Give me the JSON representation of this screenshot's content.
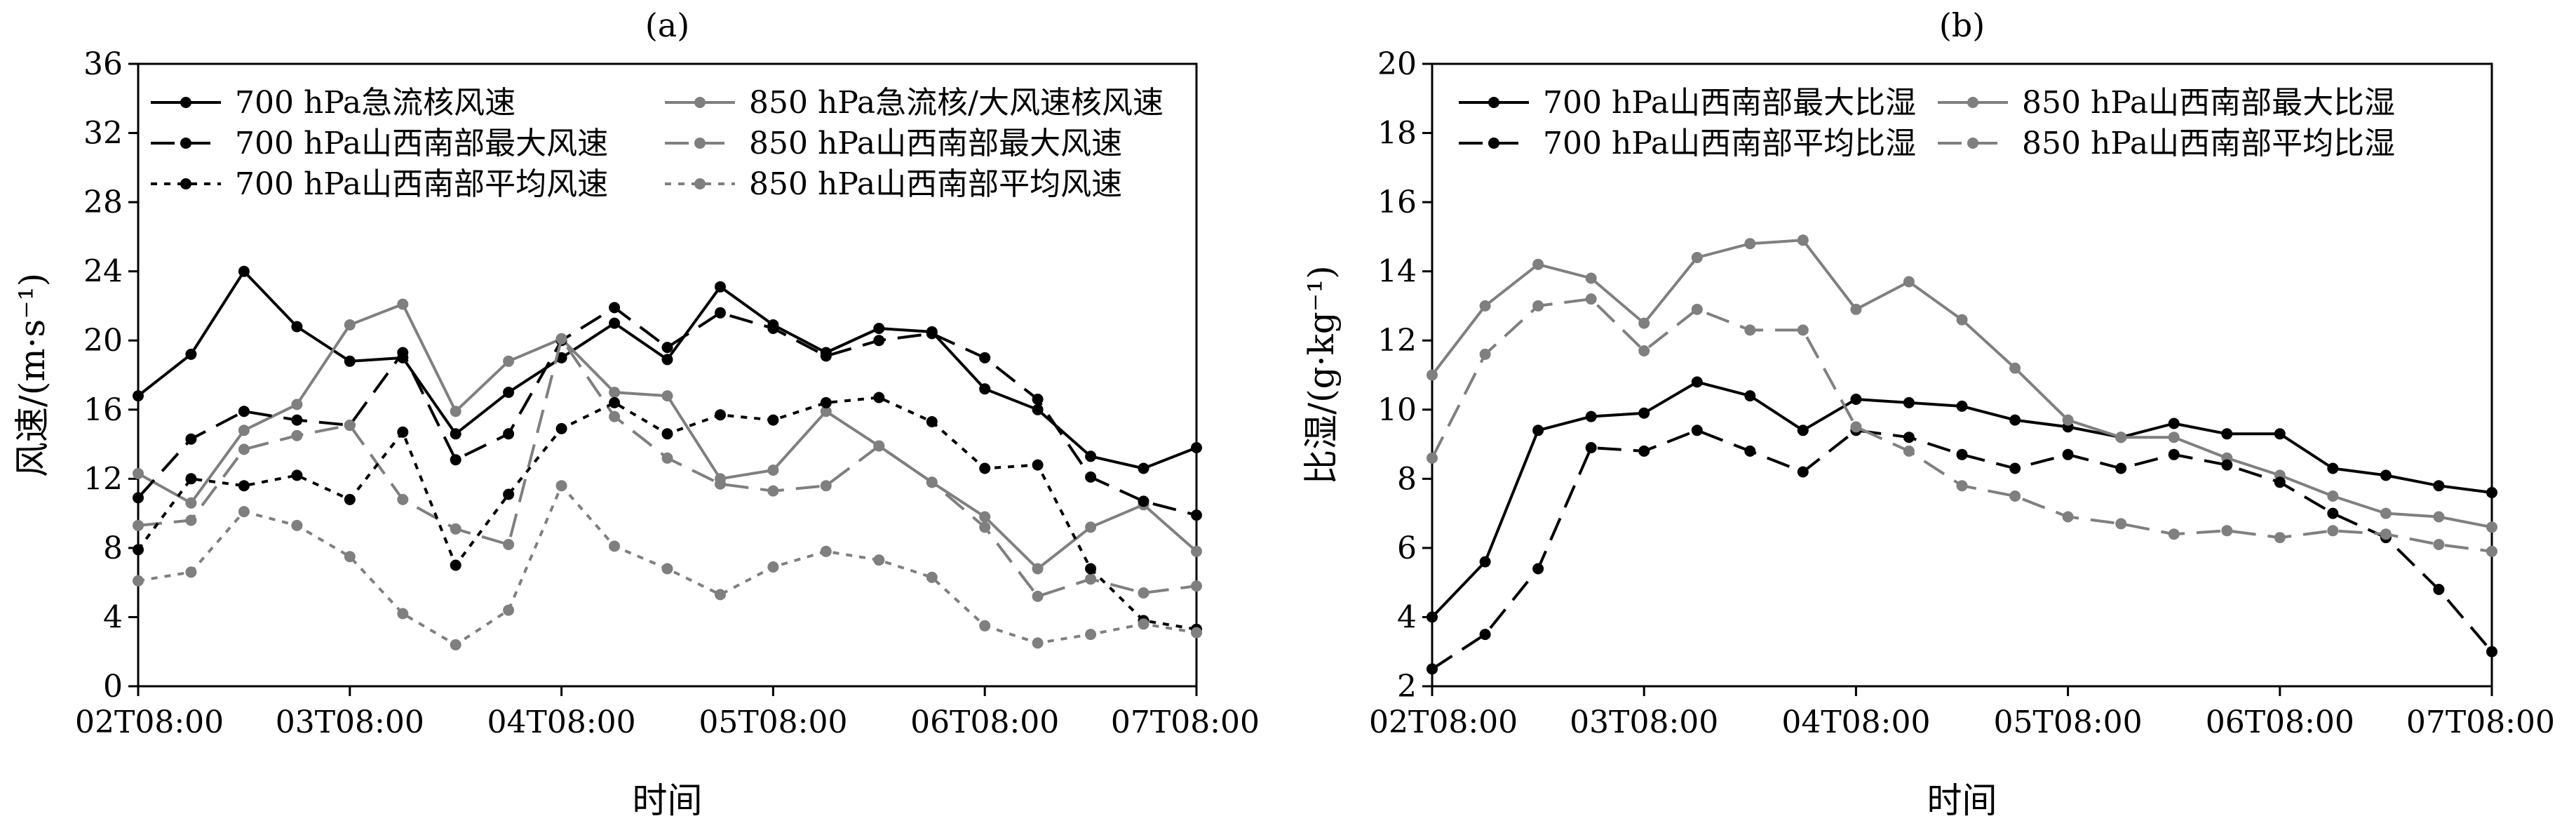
{
  "chart_data": [
    {
      "type": "line",
      "panel_label": "(a)",
      "xlabel": "时间",
      "ylabel": "风速/(m·s⁻¹)",
      "ylim": [
        0,
        36
      ],
      "yticks": [
        0,
        4,
        8,
        12,
        16,
        20,
        24,
        28,
        32,
        36
      ],
      "xlim": [
        0,
        30
      ],
      "xtick_positions": [
        0,
        6,
        12,
        18,
        24,
        30
      ],
      "xtick_labels": [
        "02T08:00",
        "03T08:00",
        "04T08:00",
        "05T08:00",
        "06T08:00",
        "07T08:00"
      ],
      "x": [
        0,
        1.5,
        3,
        4.5,
        6,
        7.5,
        9,
        10.5,
        12,
        13.5,
        15,
        16.5,
        18,
        19.5,
        21,
        22.5,
        24,
        25.5,
        27,
        28.5,
        30
      ],
      "grid": false,
      "legend_position": "top, two columns",
      "series": [
        {
          "name": "700 hPa急流核风速",
          "color": "#000000",
          "style": "solid",
          "values": [
            16.8,
            19.2,
            24.0,
            20.8,
            18.8,
            19.0,
            14.6,
            17.0,
            19.0,
            21.0,
            18.9,
            23.1,
            20.9,
            19.3,
            20.7,
            20.5,
            17.2,
            16.0,
            13.3,
            12.6,
            13.8
          ]
        },
        {
          "name": "850 hPa急流核/大风速核风速",
          "color": "#7f7f7f",
          "style": "solid",
          "values": [
            12.3,
            10.6,
            14.8,
            16.3,
            20.9,
            22.1,
            15.9,
            18.8,
            20.1,
            17.0,
            16.8,
            12.0,
            12.5,
            15.9,
            13.9,
            11.8,
            9.8,
            6.8,
            9.2,
            10.5,
            7.8
          ]
        },
        {
          "name": "700 hPa山西南部最大风速",
          "color": "#000000",
          "style": "dashed",
          "values": [
            10.9,
            14.3,
            15.9,
            15.4,
            15.1,
            19.3,
            13.1,
            14.6,
            20.0,
            21.9,
            19.6,
            21.6,
            20.7,
            19.1,
            20.0,
            20.4,
            19.0,
            16.6,
            12.1,
            10.7,
            9.9
          ]
        },
        {
          "name": "850 hPa山西南部最大风速",
          "color": "#7f7f7f",
          "style": "dashed",
          "values": [
            9.3,
            9.6,
            13.7,
            14.5,
            15.1,
            10.8,
            9.1,
            8.2,
            20.1,
            15.6,
            13.2,
            11.7,
            11.3,
            11.6,
            13.9,
            11.8,
            9.2,
            5.2,
            6.2,
            5.4,
            5.8
          ]
        },
        {
          "name": "700 hPa山西南部平均风速",
          "color": "#000000",
          "style": "dotted",
          "values": [
            7.9,
            12.0,
            11.6,
            12.2,
            10.8,
            14.7,
            7.0,
            11.1,
            14.9,
            16.4,
            14.6,
            15.7,
            15.4,
            16.4,
            16.7,
            15.3,
            12.6,
            12.8,
            6.8,
            3.8,
            3.3
          ]
        },
        {
          "name": "850 hPa山西南部平均风速",
          "color": "#7f7f7f",
          "style": "dotted",
          "values": [
            6.1,
            6.6,
            10.1,
            9.3,
            7.5,
            4.2,
            2.4,
            4.4,
            11.6,
            8.1,
            6.8,
            5.3,
            6.9,
            7.8,
            7.3,
            6.3,
            3.5,
            2.5,
            3.0,
            3.6,
            3.1
          ]
        }
      ]
    },
    {
      "type": "line",
      "panel_label": "(b)",
      "xlabel": "时间",
      "ylabel": "比湿/(g·kg⁻¹)",
      "ylim": [
        2,
        20
      ],
      "yticks": [
        2,
        4,
        6,
        8,
        10,
        12,
        14,
        16,
        18,
        20
      ],
      "xlim": [
        0,
        30
      ],
      "xtick_positions": [
        0,
        6,
        12,
        18,
        24,
        30
      ],
      "xtick_labels": [
        "02T08:00",
        "03T08:00",
        "04T08:00",
        "05T08:00",
        "06T08:00",
        "07T08:00"
      ],
      "x": [
        0,
        1.5,
        3,
        4.5,
        6,
        7.5,
        9,
        10.5,
        12,
        13.5,
        15,
        16.5,
        18,
        19.5,
        21,
        22.5,
        24,
        25.5,
        27,
        28.5,
        30
      ],
      "grid": false,
      "legend_position": "top, two columns",
      "series": [
        {
          "name": "700 hPa山西南部最大比湿",
          "color": "#000000",
          "style": "solid",
          "values": [
            4.0,
            5.6,
            9.4,
            9.8,
            9.9,
            10.8,
            10.4,
            9.4,
            10.3,
            10.2,
            10.1,
            9.7,
            9.5,
            9.2,
            9.6,
            9.3,
            9.3,
            8.3,
            8.1,
            7.8,
            7.6
          ]
        },
        {
          "name": "850 hPa山西南部最大比湿",
          "color": "#7f7f7f",
          "style": "solid",
          "values": [
            11.0,
            13.0,
            14.2,
            13.8,
            12.5,
            14.4,
            14.8,
            14.9,
            12.9,
            13.7,
            12.6,
            11.2,
            9.7,
            9.2,
            9.2,
            8.6,
            8.1,
            7.5,
            7.0,
            6.9,
            6.6
          ]
        },
        {
          "name": "700 hPa山西南部平均比湿",
          "color": "#000000",
          "style": "dashed",
          "values": [
            2.5,
            3.5,
            5.4,
            8.9,
            8.8,
            9.4,
            8.8,
            8.2,
            9.4,
            9.2,
            8.7,
            8.3,
            8.7,
            8.3,
            8.7,
            8.4,
            7.9,
            7.0,
            6.3,
            4.8,
            3.0
          ]
        },
        {
          "name": "850 hPa山西南部平均比湿",
          "color": "#7f7f7f",
          "style": "dashed",
          "values": [
            8.6,
            11.6,
            13.0,
            13.2,
            11.7,
            12.9,
            12.3,
            12.3,
            9.5,
            8.8,
            7.8,
            7.5,
            6.9,
            6.7,
            6.4,
            6.5,
            6.3,
            6.5,
            6.4,
            6.1,
            5.9
          ]
        }
      ]
    }
  ]
}
